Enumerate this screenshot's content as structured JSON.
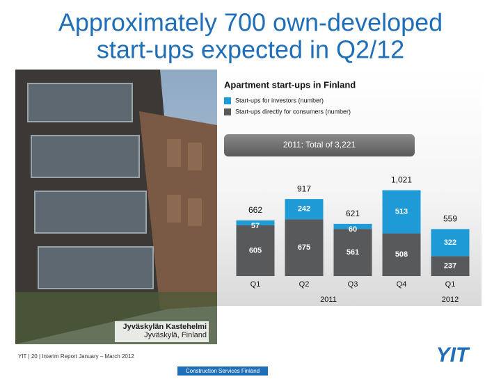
{
  "slide": {
    "title_lines": [
      "Approximately 700 own-developed",
      "start-ups expected in Q2/12"
    ],
    "photo_caption": [
      "Jyväskylän Kastehelmi",
      "Jyväskylä, Finland"
    ],
    "footer": "YIT  |  20  |  Interim Report January – March 2012",
    "division": "Construction Services Finland",
    "logo": "YIT"
  },
  "chart_data": {
    "type": "bar",
    "stacked": true,
    "title": "Apartment start-ups in Finland",
    "annotation": "2011: Total of 3,221",
    "categories": [
      "Q1",
      "Q2",
      "Q3",
      "Q4",
      "Q1"
    ],
    "group_labels": [
      "2011",
      "2012"
    ],
    "series": [
      {
        "name": "Start-ups for investors (number)",
        "color": "#1e9ad6",
        "values": [
          57,
          242,
          60,
          513,
          322
        ]
      },
      {
        "name": "Start-ups directly for consumers (number)",
        "color": "#58595b",
        "values": [
          605,
          675,
          561,
          508,
          237
        ]
      }
    ],
    "totals": {
      "values": [
        662,
        917,
        621,
        1021,
        559
      ],
      "value_labels": [
        "662",
        "917",
        "621",
        "1,021",
        "559"
      ]
    },
    "ylim": [
      0,
      1100
    ]
  }
}
